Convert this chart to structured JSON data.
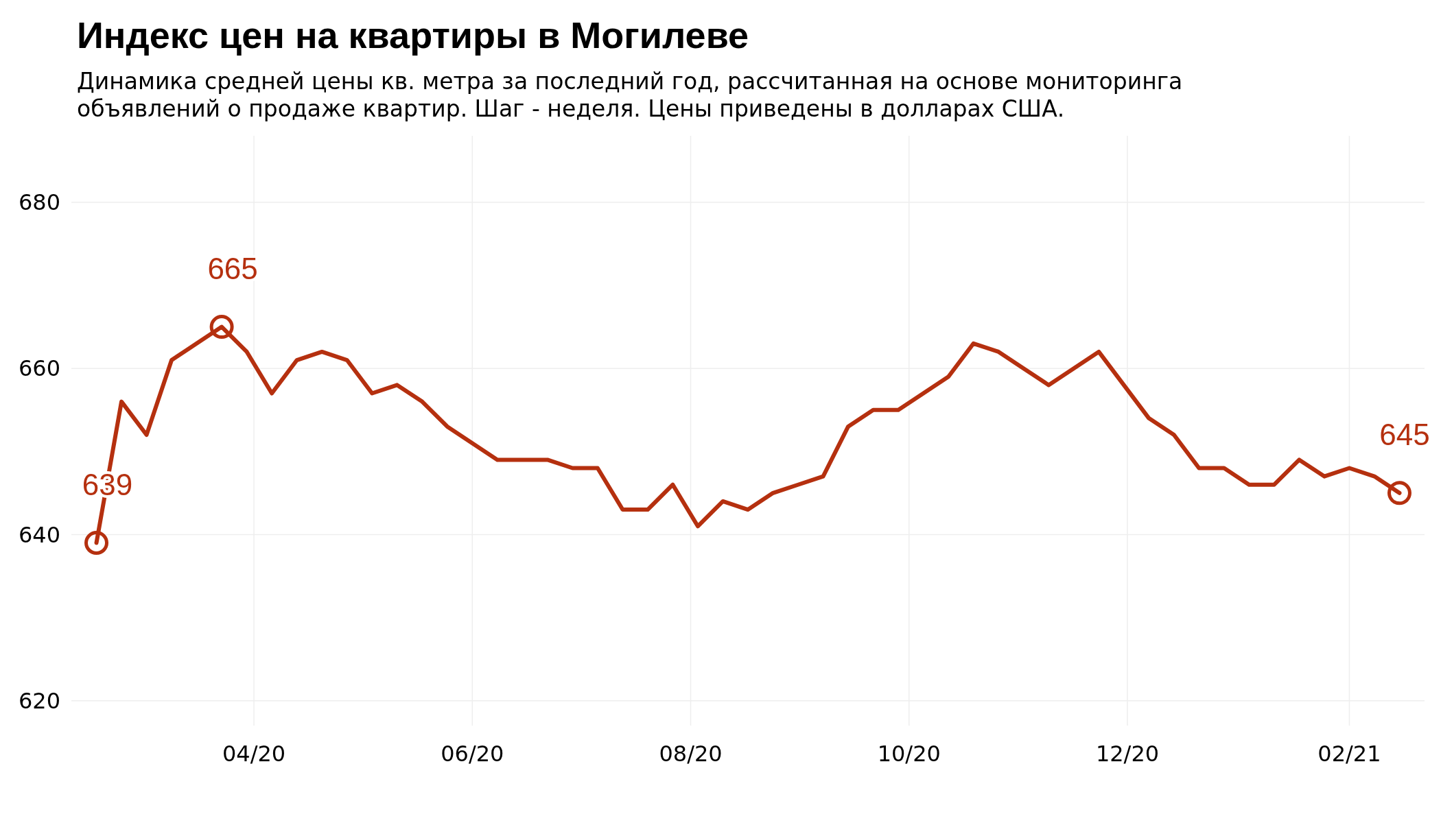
{
  "chart_data": {
    "type": "line",
    "title": "Индекс цен на квартиры в Могилеве",
    "subtitle": "Динамика средней цены кв. метра за последний год, рассчитанная на основе мониторинга объявлений о продаже квартир. Шаг - неделя. Цены приведены в долларах США.",
    "x": [
      "2020-02-17",
      "2020-02-24",
      "2020-03-02",
      "2020-03-09",
      "2020-03-16",
      "2020-03-23",
      "2020-03-30",
      "2020-04-06",
      "2020-04-13",
      "2020-04-20",
      "2020-04-27",
      "2020-05-04",
      "2020-05-11",
      "2020-05-18",
      "2020-05-25",
      "2020-06-01",
      "2020-06-08",
      "2020-06-15",
      "2020-06-22",
      "2020-06-29",
      "2020-07-06",
      "2020-07-13",
      "2020-07-20",
      "2020-07-27",
      "2020-08-03",
      "2020-08-10",
      "2020-08-17",
      "2020-08-24",
      "2020-08-31",
      "2020-09-07",
      "2020-09-14",
      "2020-09-21",
      "2020-09-28",
      "2020-10-05",
      "2020-10-12",
      "2020-10-19",
      "2020-10-26",
      "2020-11-02",
      "2020-11-09",
      "2020-11-16",
      "2020-11-23",
      "2020-11-30",
      "2020-12-07",
      "2020-12-14",
      "2020-12-21",
      "2020-12-28",
      "2021-01-04",
      "2021-01-11",
      "2021-01-18",
      "2021-01-25",
      "2021-02-01",
      "2021-02-08",
      "2021-02-15"
    ],
    "series": [
      {
        "color": "#b5300f",
        "values": [
          639,
          656,
          652,
          661,
          663,
          665,
          662,
          657,
          661,
          662,
          661,
          657,
          658,
          656,
          653,
          651,
          649,
          649,
          649,
          648,
          648,
          643,
          643,
          646,
          641,
          644,
          643,
          645,
          646,
          647,
          653,
          655,
          655,
          657,
          659,
          663,
          662,
          660,
          658,
          660,
          662,
          658,
          654,
          652,
          648,
          648,
          646,
          646,
          649,
          647,
          648,
          647,
          645
        ]
      }
    ],
    "xlim": [
      "2020-02-10",
      "2021-02-22"
    ],
    "xticks": [
      {
        "value": "2020-04-01",
        "label": "04/20"
      },
      {
        "value": "2020-06-01",
        "label": "06/20"
      },
      {
        "value": "2020-08-01",
        "label": "08/20"
      },
      {
        "value": "2020-10-01",
        "label": "10/20"
      },
      {
        "value": "2020-12-01",
        "label": "12/20"
      },
      {
        "value": "2021-02-01",
        "label": "02/21"
      }
    ],
    "ylim": [
      617,
      688
    ],
    "yticks": [
      620,
      640,
      660,
      680
    ],
    "grid": true,
    "marker": "none",
    "line_style": "solid",
    "annotations": [
      {
        "text": "639",
        "x": "2020-02-17",
        "y": 639
      },
      {
        "text": "665",
        "x": "2020-03-23",
        "y": 665
      },
      {
        "text": "645",
        "x": "2021-02-15",
        "y": 645
      }
    ]
  }
}
